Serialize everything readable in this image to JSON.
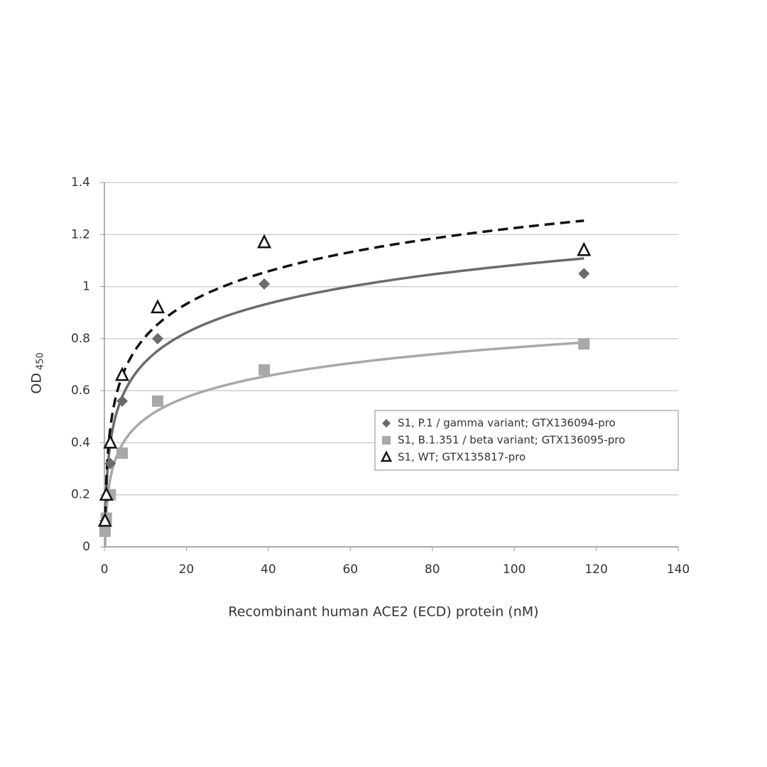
{
  "chart_data": {
    "type": "scatter",
    "y_label": "OD",
    "y_label_subscript": "450",
    "x_label": "Recombinant human ACE2 (ECD) protein (nM)",
    "xlim": [
      0,
      140
    ],
    "xticks": [
      0,
      20,
      40,
      60,
      80,
      100,
      120,
      140
    ],
    "ylim": [
      0,
      1.4
    ],
    "yticks": [
      0,
      0.2,
      0.4,
      0.6,
      0.8,
      1,
      1.2,
      1.4
    ],
    "grid": true,
    "trendline": "logarithmic",
    "legend_position": "center-right",
    "series": [
      {
        "name": "S1, P.1 / gamma variant; GTX136094-pro",
        "color": "#6b6b6b",
        "marker": "diamond",
        "line": "solid",
        "x": [
          0.16,
          0.48,
          1.44,
          4.33,
          13,
          39,
          117
        ],
        "values": [
          0.1,
          0.19,
          0.32,
          0.56,
          0.8,
          1.01,
          1.05
        ]
      },
      {
        "name": "S1, B.1.351 / beta variant; GTX136095-pro",
        "color": "#a8a8a8",
        "marker": "square",
        "line": "solid",
        "x": [
          0.16,
          0.48,
          1.44,
          4.33,
          13,
          39,
          117
        ],
        "values": [
          0.06,
          0.11,
          0.2,
          0.36,
          0.56,
          0.68,
          0.78
        ]
      },
      {
        "name": "S1, WT; GTX135817-pro",
        "color": "#111111",
        "marker": "triangle-open",
        "line": "dashed",
        "x": [
          0.16,
          0.48,
          1.44,
          4.33,
          13,
          39,
          117
        ],
        "values": [
          0.1,
          0.2,
          0.4,
          0.66,
          0.92,
          1.17,
          1.14
        ]
      }
    ]
  }
}
